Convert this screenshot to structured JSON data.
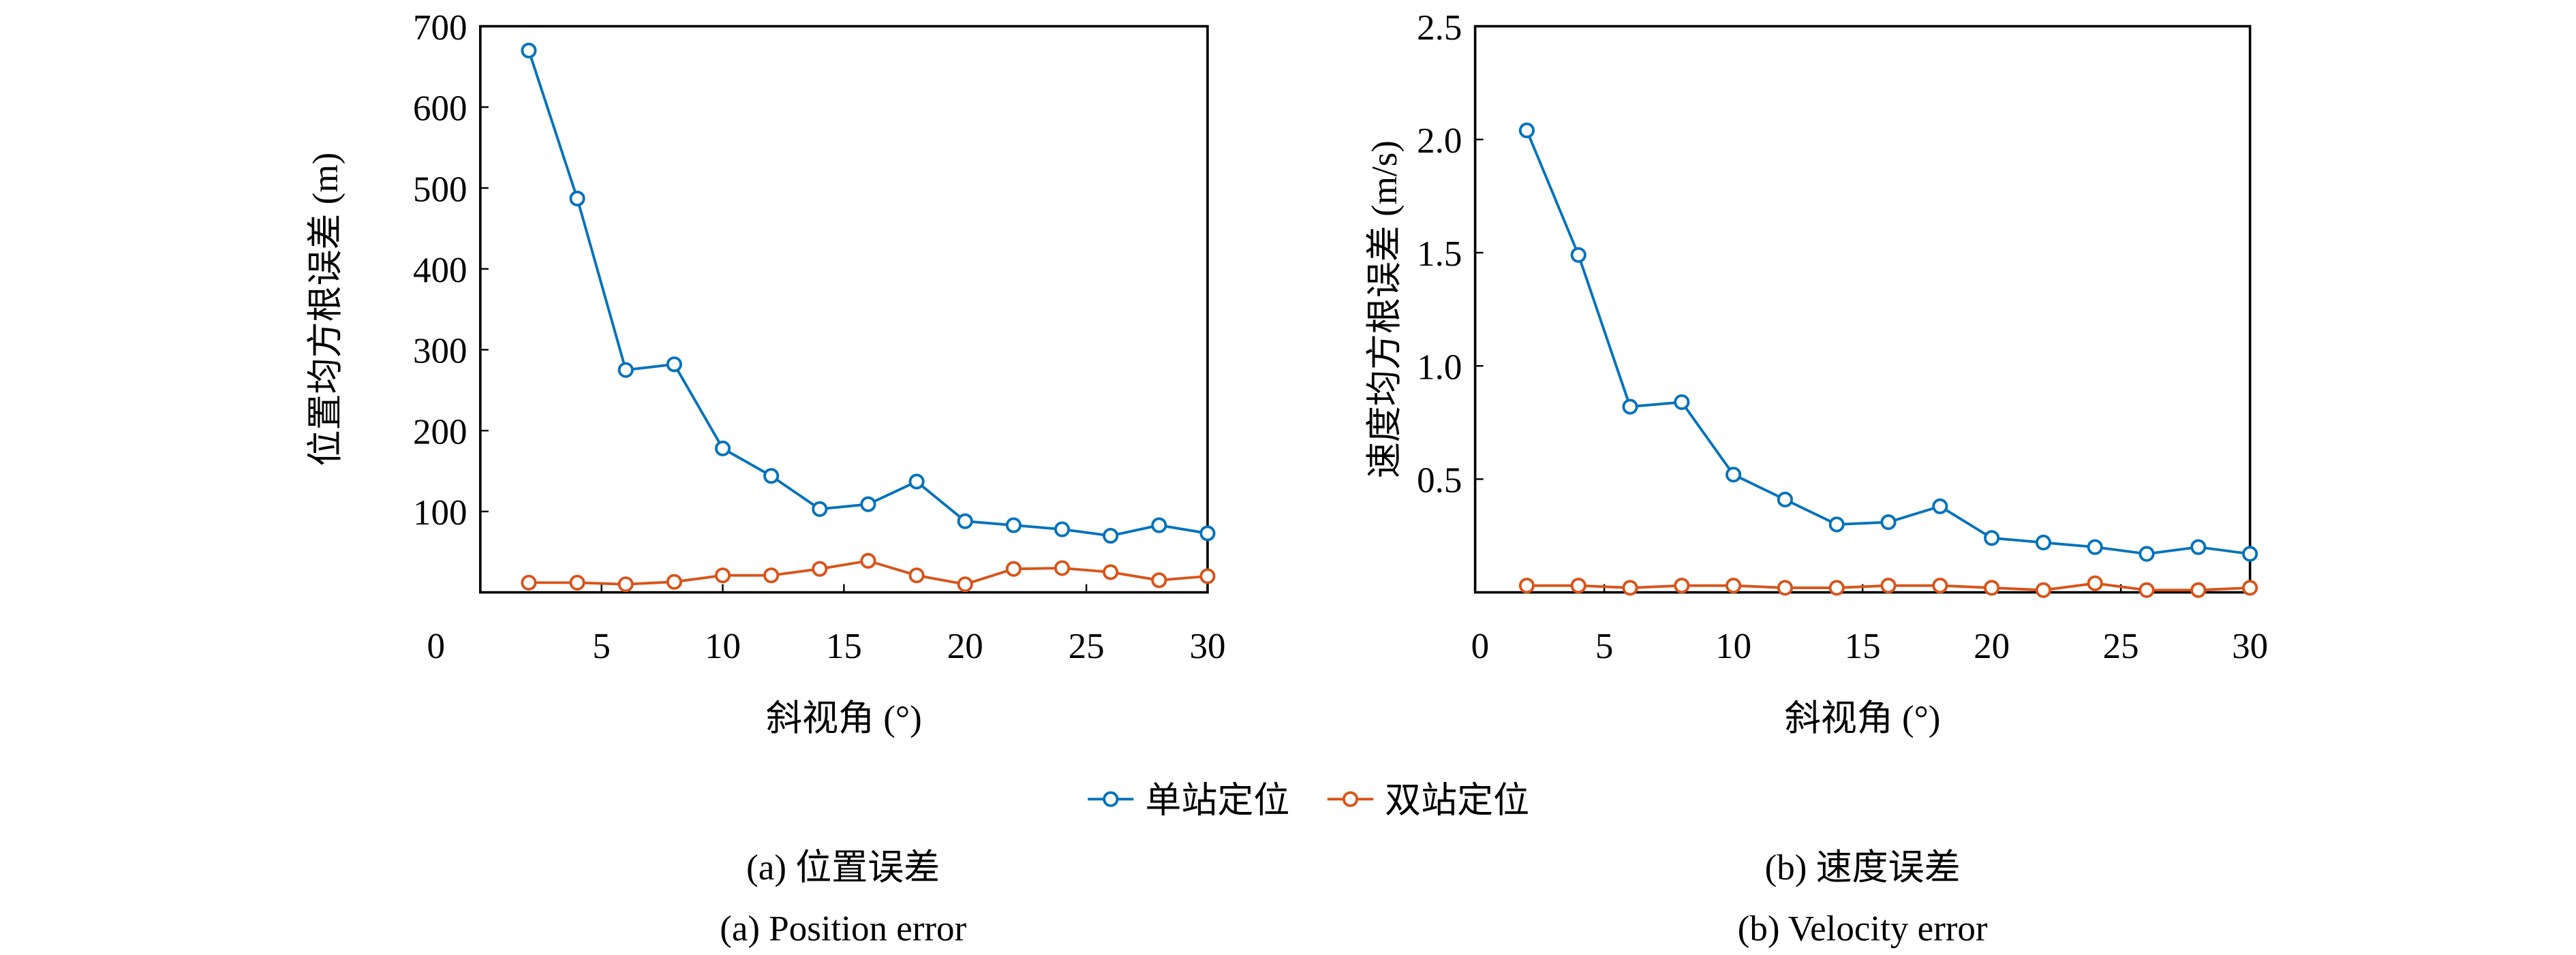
{
  "legend": {
    "items": [
      "单站定位",
      "双站定位"
    ],
    "placement": "bottom-center"
  },
  "colors": {
    "series1": "#0072BD",
    "series2": "#D95319"
  },
  "chart_data": [
    {
      "type": "line",
      "title": "",
      "caption_cn": "(a) 位置误差",
      "caption_en": "(a) Position error",
      "xlabel": "斜视角 (°)",
      "ylabel": "位置均方根误差 (m)",
      "xlim": [
        0,
        30
      ],
      "ylim": [
        0,
        700
      ],
      "xticks": [
        "0",
        "5",
        "10",
        "15",
        "20",
        "25",
        "30"
      ],
      "yticks": [
        "100",
        "200",
        "300",
        "400",
        "500",
        "600",
        "700"
      ],
      "ytick_values": [
        100,
        200,
        300,
        400,
        500,
        600,
        700
      ],
      "xtick_values": [
        0,
        5,
        10,
        15,
        20,
        25,
        30
      ],
      "x": [
        2,
        4,
        6,
        8,
        10,
        12,
        14,
        16,
        18,
        20,
        22,
        24,
        26,
        28,
        30
      ],
      "series": [
        {
          "name": "单站定位",
          "values": [
            670,
            487,
            275,
            282,
            178,
            144,
            103,
            109,
            137,
            88,
            83,
            78,
            70,
            83,
            73
          ]
        },
        {
          "name": "双站定位",
          "values": [
            12,
            12,
            10,
            13,
            21,
            21,
            29,
            39,
            21,
            10,
            29,
            30,
            25,
            15,
            20
          ]
        }
      ]
    },
    {
      "type": "line",
      "title": "",
      "caption_cn": "(b) 速度误差",
      "caption_en": "(b) Velocity error",
      "xlabel": "斜视角 (°)",
      "ylabel": "速度均方根误差 (m/s)",
      "xlim": [
        0,
        30
      ],
      "ylim": [
        0,
        2.5
      ],
      "xticks": [
        "0",
        "5",
        "10",
        "15",
        "20",
        "25",
        "30"
      ],
      "yticks": [
        "0.5",
        "1.0",
        "1.5",
        "2.0",
        "2.5"
      ],
      "ytick_values": [
        0.5,
        1.0,
        1.5,
        2.0,
        2.5
      ],
      "xtick_values": [
        0,
        5,
        10,
        15,
        20,
        25,
        30
      ],
      "x": [
        2,
        4,
        6,
        8,
        10,
        12,
        14,
        16,
        18,
        20,
        22,
        24,
        26,
        28,
        30
      ],
      "series": [
        {
          "name": "单站定位",
          "values": [
            2.04,
            1.49,
            0.82,
            0.84,
            0.52,
            0.41,
            0.3,
            0.31,
            0.38,
            0.24,
            0.22,
            0.2,
            0.17,
            0.2,
            0.17
          ]
        },
        {
          "name": "双站定位",
          "values": [
            0.03,
            0.03,
            0.02,
            0.03,
            0.03,
            0.02,
            0.02,
            0.03,
            0.03,
            0.02,
            0.01,
            0.04,
            0.01,
            0.01,
            0.02
          ]
        }
      ]
    }
  ]
}
